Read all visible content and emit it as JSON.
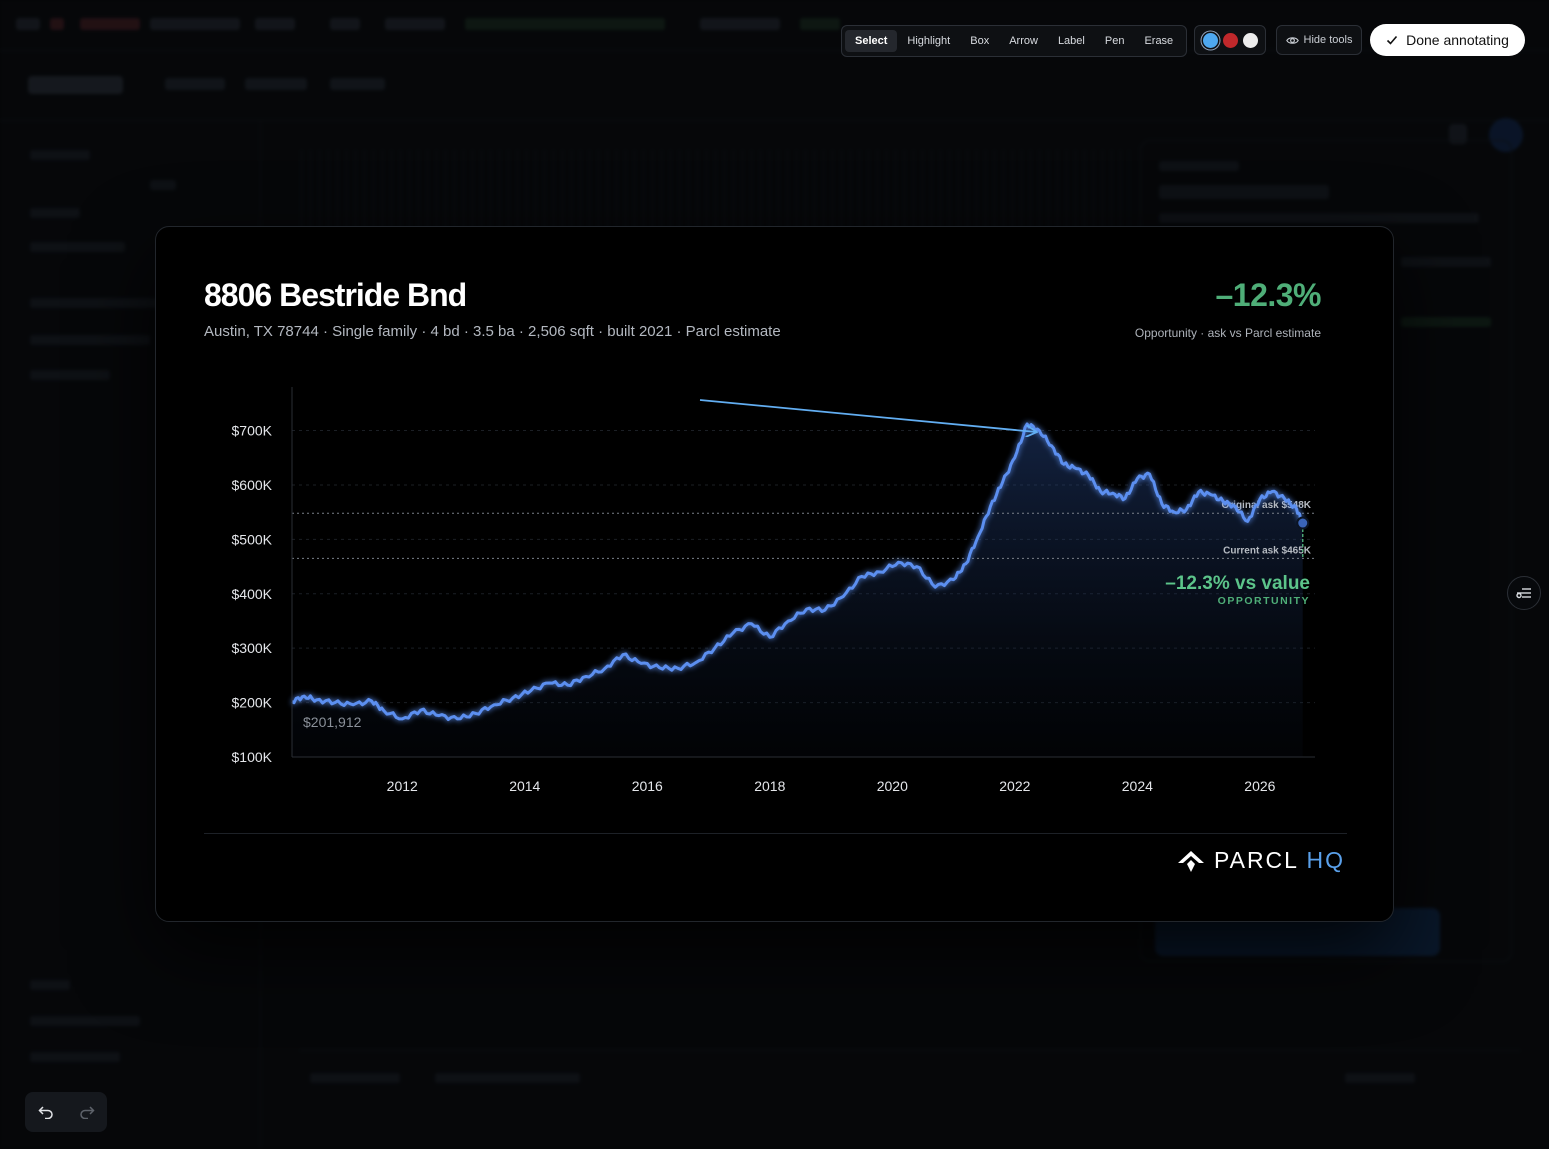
{
  "toolbar": {
    "tools": [
      {
        "label": "Select",
        "active": true
      },
      {
        "label": "Highlight"
      },
      {
        "label": "Box"
      },
      {
        "label": "Arrow"
      },
      {
        "label": "Label"
      },
      {
        "label": "Pen"
      },
      {
        "label": "Erase"
      }
    ],
    "colors": [
      "#4ea8f0",
      "#c0282b",
      "#ececec"
    ],
    "hide_tools_label": "Hide tools",
    "done_label": "Done annotating"
  },
  "card": {
    "title": "8806 Bestride Bnd",
    "subtitle": "Austin, TX 78744 · Single family · 4 bd · 3.5 ba · 2,506 sqft · built 2021 · Parcl estimate",
    "opportunity_value": "–12.3%",
    "opportunity_caption": "Opportunity · ask vs Parcl estimate"
  },
  "chart_data": {
    "type": "line",
    "line_color": "#5b8ff0",
    "xlim": [
      2010.2,
      2026.9
    ],
    "ylim": [
      100000,
      780000
    ],
    "yticks": [
      {
        "v": 100000,
        "label": "$100K"
      },
      {
        "v": 200000,
        "label": "$200K"
      },
      {
        "v": 300000,
        "label": "$300K"
      },
      {
        "v": 400000,
        "label": "$400K"
      },
      {
        "v": 500000,
        "label": "$500K"
      },
      {
        "v": 600000,
        "label": "$600K"
      },
      {
        "v": 700000,
        "label": "$700K"
      }
    ],
    "xticks": [
      {
        "v": 2012,
        "label": "2012"
      },
      {
        "v": 2014,
        "label": "2014"
      },
      {
        "v": 2016,
        "label": "2016"
      },
      {
        "v": 2018,
        "label": "2018"
      },
      {
        "v": 2020,
        "label": "2020"
      },
      {
        "v": 2022,
        "label": "2022"
      },
      {
        "v": 2024,
        "label": "2024"
      },
      {
        "v": 2026,
        "label": "2026"
      }
    ],
    "start_value_label": "$201,912",
    "x": [
      2010.2,
      2010.4,
      2010.6,
      2010.9,
      2011.2,
      2011.5,
      2011.7,
      2012.0,
      2012.3,
      2012.6,
      2012.9,
      2013.2,
      2013.5,
      2013.8,
      2014.1,
      2014.4,
      2014.7,
      2015.0,
      2015.3,
      2015.6,
      2015.9,
      2016.2,
      2016.5,
      2016.8,
      2017.1,
      2017.4,
      2017.7,
      2018.0,
      2018.3,
      2018.6,
      2018.9,
      2019.2,
      2019.5,
      2019.8,
      2020.1,
      2020.4,
      2020.7,
      2021.0,
      2021.2,
      2021.4,
      2021.6,
      2021.8,
      2022.0,
      2022.2,
      2022.4,
      2022.6,
      2022.8,
      2023.0,
      2023.2,
      2023.4,
      2023.6,
      2023.8,
      2024.0,
      2024.2,
      2024.4,
      2024.6,
      2024.8,
      2025.0,
      2025.2,
      2025.4,
      2025.6,
      2025.8,
      2026.0,
      2026.2,
      2026.4,
      2026.6,
      2026.7
    ],
    "y": [
      201912,
      212000,
      205000,
      200000,
      196000,
      203000,
      185000,
      170000,
      186000,
      176000,
      170000,
      180000,
      196000,
      208000,
      222000,
      236000,
      232000,
      248000,
      262000,
      288000,
      272000,
      264000,
      263000,
      274000,
      300000,
      328000,
      345000,
      320000,
      350000,
      372000,
      370000,
      395000,
      432000,
      440000,
      458000,
      450000,
      412000,
      426000,
      455000,
      505000,
      560000,
      605000,
      650000,
      712000,
      700000,
      672000,
      638000,
      630000,
      618000,
      588000,
      585000,
      575000,
      612000,
      620000,
      565000,
      550000,
      555000,
      587000,
      582000,
      570000,
      560000,
      533000,
      574000,
      588000,
      575000,
      556000,
      530000
    ],
    "reference_lines": [
      {
        "label": "Original ask $548K",
        "value": 548000
      },
      {
        "label": "Current ask $465K",
        "value": 465000
      }
    ],
    "annotation_value": "–12.3% vs value",
    "annotation_caption": "OPPORTUNITY"
  }
}
